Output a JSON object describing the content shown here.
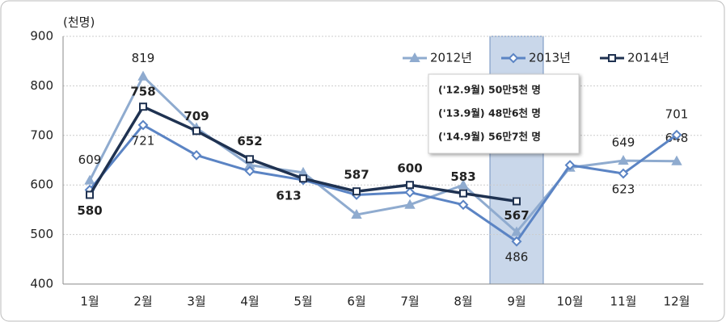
{
  "chart_data": {
    "type": "line",
    "y_label": "(천명)",
    "categories": [
      "1월",
      "2월",
      "3월",
      "4월",
      "5월",
      "6월",
      "7월",
      "8월",
      "9월",
      "10월",
      "11월",
      "12월"
    ],
    "ylim": [
      400,
      900
    ],
    "yticks": [
      400,
      500,
      600,
      700,
      800,
      900
    ],
    "grid": true,
    "legend": "top-right",
    "series": [
      {
        "name": "2012년",
        "color": "#8fabcf",
        "marker": "triangle",
        "values": [
          609,
          819,
          715,
          640,
          625,
          540,
          560,
          600,
          505,
          635,
          649,
          648
        ],
        "value_labels": [
          "609",
          "819",
          null,
          null,
          null,
          null,
          null,
          null,
          null,
          null,
          "649",
          "648"
        ]
      },
      {
        "name": "2013년",
        "color": "#5b84c4",
        "marker": "diamond",
        "values": [
          590,
          721,
          660,
          628,
          610,
          580,
          585,
          560,
          486,
          640,
          623,
          701
        ],
        "value_labels": [
          null,
          "721",
          null,
          null,
          null,
          null,
          null,
          null,
          "486",
          null,
          "623",
          "701"
        ]
      },
      {
        "name": "2014년",
        "color": "#1f3251",
        "marker": "square",
        "values": [
          580,
          758,
          709,
          652,
          613,
          587,
          600,
          583,
          567,
          null,
          null,
          null
        ],
        "value_labels": [
          "580",
          "758",
          "709",
          "652",
          "613",
          "587",
          "600",
          "583",
          "567",
          null,
          null,
          null
        ]
      }
    ],
    "annotations": [
      "('12.9월) 50만5천 명",
      "('13.9월) 48만6천 명",
      "('14.9월) 56만7천 명"
    ]
  }
}
